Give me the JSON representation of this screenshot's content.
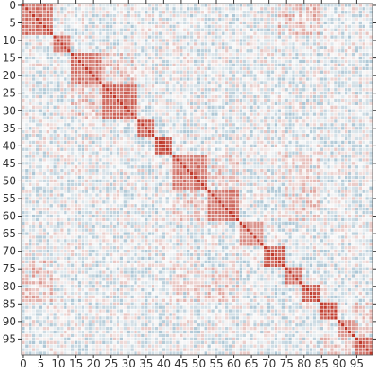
{
  "chart_data": {
    "type": "heatmap",
    "title": "",
    "xlabel": "",
    "ylabel": "",
    "n": 100,
    "x_ticks": [
      0,
      5,
      10,
      15,
      20,
      25,
      30,
      35,
      40,
      45,
      50,
      55,
      60,
      65,
      70,
      75,
      80,
      85,
      90,
      95
    ],
    "y_ticks": [
      0,
      5,
      10,
      15,
      20,
      25,
      30,
      35,
      40,
      45,
      50,
      55,
      60,
      65,
      70,
      75,
      80,
      85,
      90,
      95
    ],
    "value_range": [
      -1,
      1
    ],
    "colormap": {
      "low": "#4b87a8",
      "mid": "#f7f7f7",
      "high": "#c0392b"
    },
    "blocks": [
      {
        "start": 0,
        "end": 8,
        "strength": 0.75
      },
      {
        "start": 9,
        "end": 13,
        "strength": 0.8
      },
      {
        "start": 14,
        "end": 22,
        "strength": 0.7
      },
      {
        "start": 23,
        "end": 32,
        "strength": 0.75
      },
      {
        "start": 33,
        "end": 37,
        "strength": 0.8
      },
      {
        "start": 38,
        "end": 42,
        "strength": 0.85
      },
      {
        "start": 43,
        "end": 52,
        "strength": 0.7
      },
      {
        "start": 53,
        "end": 61,
        "strength": 0.7
      },
      {
        "start": 62,
        "end": 68,
        "strength": 0.55
      },
      {
        "start": 69,
        "end": 74,
        "strength": 0.85
      },
      {
        "start": 75,
        "end": 79,
        "strength": 0.7
      },
      {
        "start": 80,
        "end": 84,
        "strength": 0.8
      },
      {
        "start": 85,
        "end": 89,
        "strength": 0.9
      },
      {
        "start": 90,
        "end": 94,
        "strength": 0.55
      },
      {
        "start": 95,
        "end": 99,
        "strength": 0.8
      }
    ],
    "off_blocks": [
      {
        "r": [
          0,
          8
        ],
        "c": [
          73,
          84
        ],
        "strength": 0.35
      },
      {
        "r": [
          14,
          22
        ],
        "c": [
          23,
          32
        ],
        "strength": 0.3
      },
      {
        "r": [
          43,
          52
        ],
        "c": [
          53,
          61
        ],
        "strength": 0.3
      },
      {
        "r": [
          43,
          52
        ],
        "c": [
          75,
          84
        ],
        "strength": 0.25
      },
      {
        "r": [
          53,
          61
        ],
        "c": [
          75,
          84
        ],
        "strength": 0.3
      },
      {
        "r": [
          75,
          84
        ],
        "c": [
          0,
          8
        ],
        "strength": 0.3
      },
      {
        "r": [
          95,
          99
        ],
        "c": [
          85,
          94
        ],
        "strength": 0.3
      }
    ]
  }
}
